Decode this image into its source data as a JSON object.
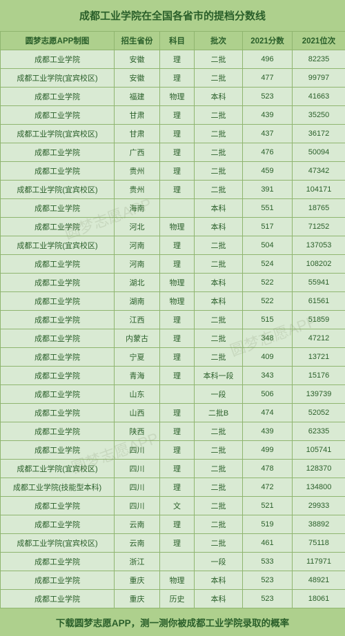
{
  "title": "成都工业学院在全国各省市的提档分数线",
  "footer": "下载圆梦志愿APP，测一测你被成都工业学院录取的概率",
  "watermark": "圆梦志愿APP",
  "headers": [
    "圆梦志愿APP制图",
    "招生省份",
    "科目",
    "批次",
    "2021分数",
    "2021位次"
  ],
  "rows": [
    [
      "成都工业学院",
      "安徽",
      "理",
      "二批",
      "496",
      "82235"
    ],
    [
      "成都工业学院(宜宾校区)",
      "安徽",
      "理",
      "二批",
      "477",
      "99797"
    ],
    [
      "成都工业学院",
      "福建",
      "物理",
      "本科",
      "523",
      "41663"
    ],
    [
      "成都工业学院",
      "甘肃",
      "理",
      "二批",
      "439",
      "35250"
    ],
    [
      "成都工业学院(宜宾校区)",
      "甘肃",
      "理",
      "二批",
      "437",
      "36172"
    ],
    [
      "成都工业学院",
      "广西",
      "理",
      "二批",
      "476",
      "50094"
    ],
    [
      "成都工业学院",
      "贵州",
      "理",
      "二批",
      "459",
      "47342"
    ],
    [
      "成都工业学院(宜宾校区)",
      "贵州",
      "理",
      "二批",
      "391",
      "104171"
    ],
    [
      "成都工业学院",
      "海南",
      "",
      "本科",
      "551",
      "18765"
    ],
    [
      "成都工业学院",
      "河北",
      "物理",
      "本科",
      "517",
      "71252"
    ],
    [
      "成都工业学院(宜宾校区)",
      "河南",
      "理",
      "二批",
      "504",
      "137053"
    ],
    [
      "成都工业学院",
      "河南",
      "理",
      "二批",
      "524",
      "108202"
    ],
    [
      "成都工业学院",
      "湖北",
      "物理",
      "本科",
      "522",
      "55941"
    ],
    [
      "成都工业学院",
      "湖南",
      "物理",
      "本科",
      "522",
      "61561"
    ],
    [
      "成都工业学院",
      "江西",
      "理",
      "二批",
      "515",
      "51859"
    ],
    [
      "成都工业学院",
      "内蒙古",
      "理",
      "二批",
      "348",
      "47212"
    ],
    [
      "成都工业学院",
      "宁夏",
      "理",
      "二批",
      "409",
      "13721"
    ],
    [
      "成都工业学院",
      "青海",
      "理",
      "本科一段",
      "343",
      "15176"
    ],
    [
      "成都工业学院",
      "山东",
      "",
      "一段",
      "506",
      "139739"
    ],
    [
      "成都工业学院",
      "山西",
      "理",
      "二批B",
      "474",
      "52052"
    ],
    [
      "成都工业学院",
      "陕西",
      "理",
      "二批",
      "439",
      "62335"
    ],
    [
      "成都工业学院",
      "四川",
      "理",
      "二批",
      "499",
      "105741"
    ],
    [
      "成都工业学院(宜宾校区)",
      "四川",
      "理",
      "二批",
      "478",
      "128370"
    ],
    [
      "成都工业学院(技能型本科)",
      "四川",
      "理",
      "二批",
      "472",
      "134800"
    ],
    [
      "成都工业学院",
      "四川",
      "文",
      "二批",
      "521",
      "29933"
    ],
    [
      "成都工业学院",
      "云南",
      "理",
      "二批",
      "519",
      "38892"
    ],
    [
      "成都工业学院(宜宾校区)",
      "云南",
      "理",
      "二批",
      "461",
      "75118"
    ],
    [
      "成都工业学院",
      "浙江",
      "",
      "一段",
      "533",
      "117971"
    ],
    [
      "成都工业学院",
      "重庆",
      "物理",
      "本科",
      "523",
      "48921"
    ],
    [
      "成都工业学院",
      "重庆",
      "历史",
      "本科",
      "523",
      "18061"
    ]
  ]
}
